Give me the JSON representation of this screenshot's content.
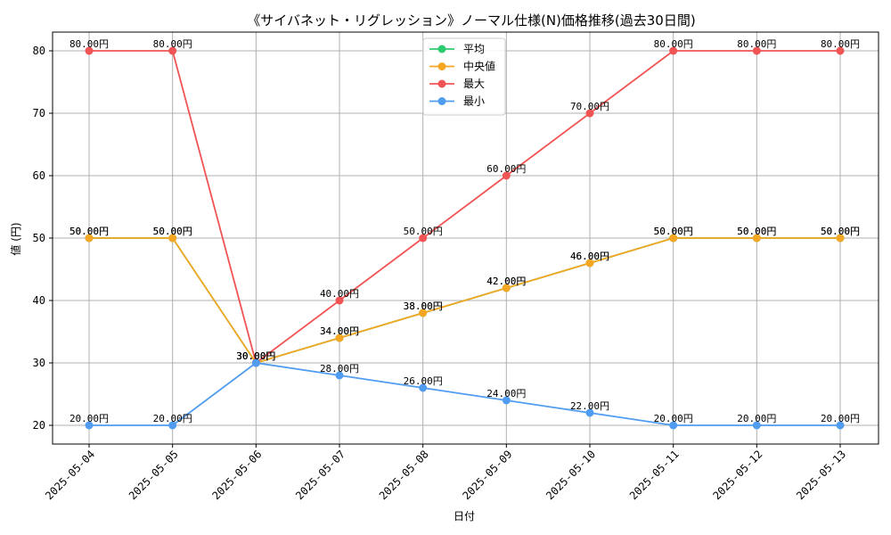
{
  "chart_data": {
    "type": "line",
    "title": "《サイバネット・リグレッション》ノーマル仕様(N)価格推移(過去30日間)",
    "xlabel": "日付",
    "ylabel": "値 (円)",
    "ylim": [
      17,
      83
    ],
    "yticks": [
      20,
      30,
      40,
      50,
      60,
      70,
      80
    ],
    "grid": true,
    "legend_position": "top-center",
    "label_suffix": "円",
    "categories": [
      "2025-05-04",
      "2025-05-05",
      "2025-05-06",
      "2025-05-07",
      "2025-05-08",
      "2025-05-09",
      "2025-05-10",
      "2025-05-11",
      "2025-05-12",
      "2025-05-13"
    ],
    "series": [
      {
        "name": "平均",
        "color": "#2ecc71",
        "values": [
          50,
          50,
          30,
          34,
          38,
          42,
          46,
          50,
          50,
          50
        ]
      },
      {
        "name": "中央値",
        "color": "#f5a623",
        "values": [
          50,
          50,
          30,
          34,
          38,
          42,
          46,
          50,
          50,
          50
        ]
      },
      {
        "name": "最大",
        "color": "#f05454",
        "values": [
          80,
          80,
          30,
          40,
          50,
          60,
          70,
          80,
          80,
          80
        ]
      },
      {
        "name": "最小",
        "color": "#4f9cf0",
        "values": [
          20,
          20,
          30,
          28,
          26,
          24,
          22,
          20,
          20,
          20
        ]
      }
    ]
  }
}
